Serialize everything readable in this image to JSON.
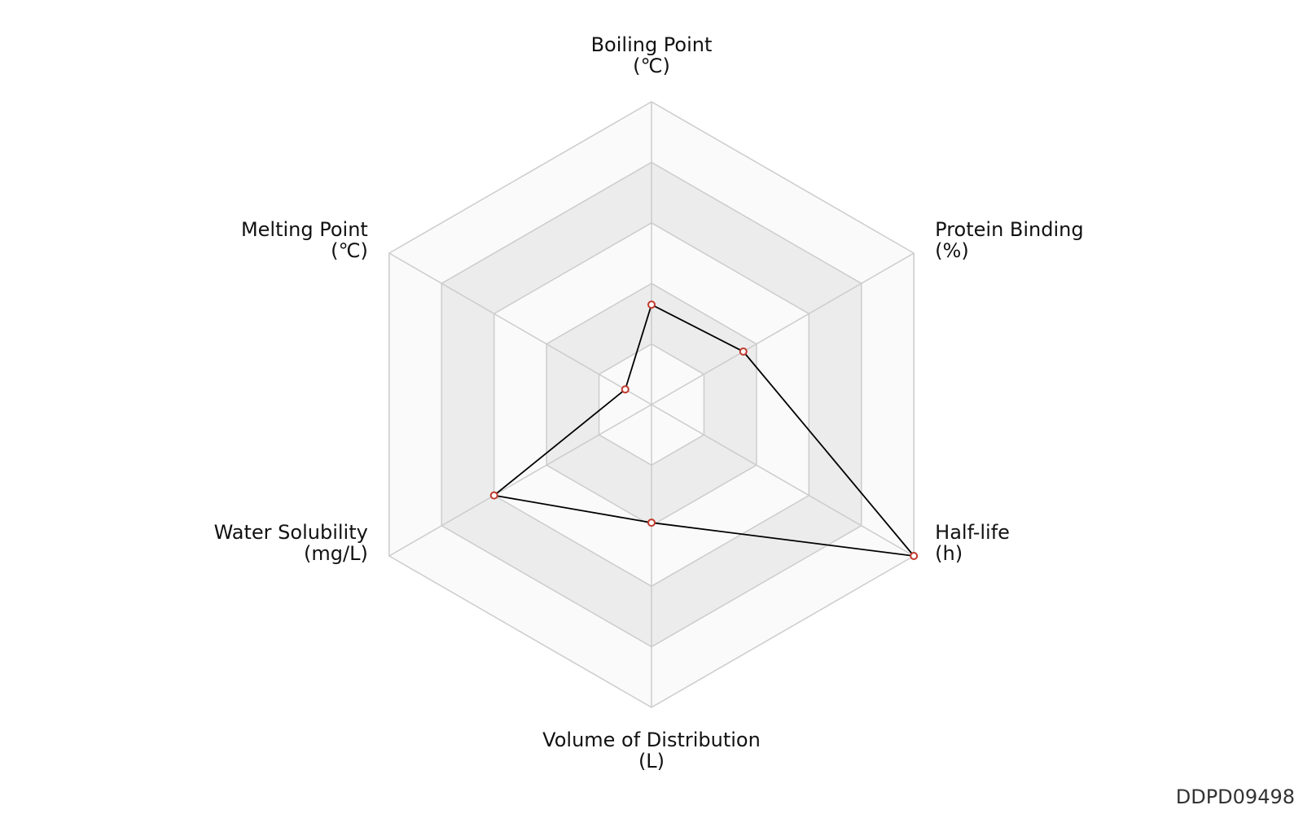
{
  "chart_data": {
    "type": "radar",
    "axes": [
      {
        "name": "Boiling Point",
        "unit": "(℃)"
      },
      {
        "name": "Protein Binding",
        "unit": "(%)"
      },
      {
        "name": "Half-life",
        "unit": "(h)"
      },
      {
        "name": "Volume of Distribution",
        "unit": "(L)"
      },
      {
        "name": "Water Solubility",
        "unit": "(mg/L)"
      },
      {
        "name": "Melting Point",
        "unit": "(℃)"
      }
    ],
    "levels": 5,
    "series": [
      {
        "values": [
          0.33,
          0.35,
          1.0,
          0.39,
          0.6,
          0.1
        ]
      }
    ],
    "colors": {
      "line": "#000000",
      "marker_stroke": "#c0392b",
      "marker_fill": "#ffffff",
      "grid": "#cccccc",
      "band_dark": "#ececec",
      "band_light": "#fafafa"
    }
  },
  "watermark": "DDPD09498"
}
